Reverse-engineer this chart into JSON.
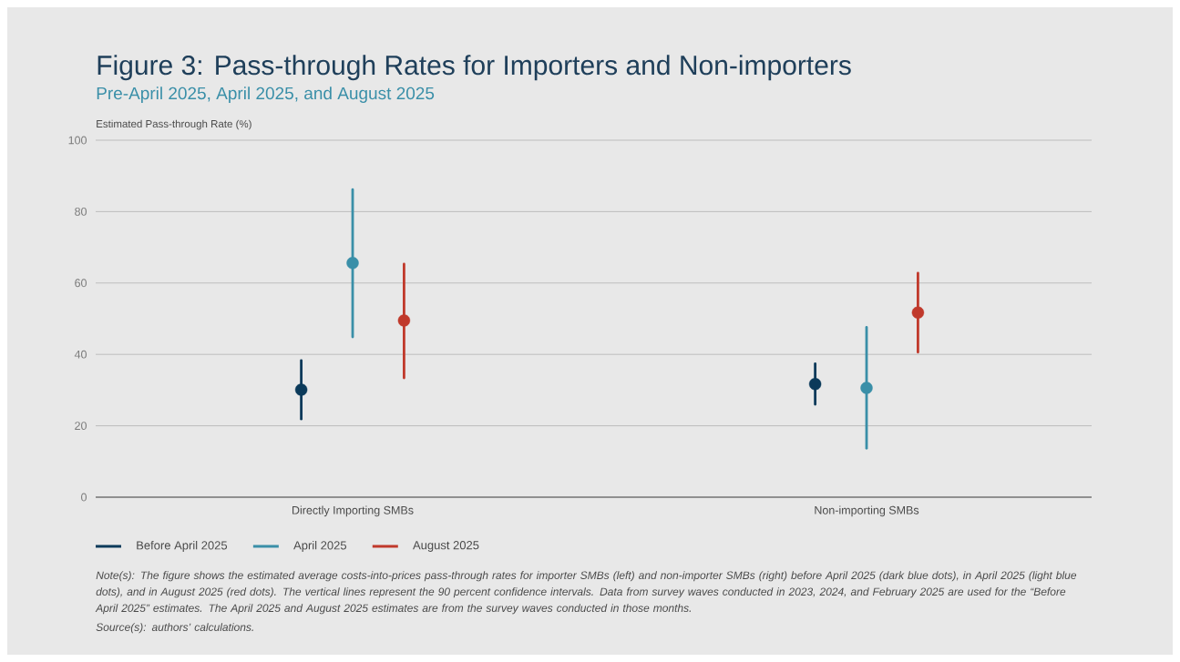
{
  "chart_data": {
    "type": "scatter",
    "title": "Figure 3: Pass-through Rates for Importers and Non-importers",
    "subtitle": "Pre-April 2025, April 2025, and August 2025",
    "ylabel": "Estimated Pass-through Rate (%)",
    "categories": [
      "Directly Importing SMBs",
      "Non-importing SMBs"
    ],
    "series": [
      {
        "name": "Before April 2025",
        "color": "#0b3a5a",
        "values": [
          30.1,
          31.7
        ],
        "errors": [
          [
            21.9,
            38.3
          ],
          [
            26.0,
            37.4
          ]
        ]
      },
      {
        "name": "April 2025",
        "color": "#3a8fa8",
        "values": [
          65.6,
          30.6
        ],
        "errors": [
          [
            44.9,
            86.2
          ],
          [
            13.7,
            47.6
          ]
        ]
      },
      {
        "name": "August 2025",
        "color": "#c0392b",
        "values": [
          49.5,
          51.7
        ],
        "errors": [
          [
            33.4,
            65.3
          ],
          [
            40.6,
            62.8
          ]
        ]
      }
    ],
    "ylim": [
      0,
      100
    ],
    "yticks": [
      0,
      20,
      40,
      60,
      80,
      100
    ],
    "grid": "y",
    "legend": "bottom",
    "marker": "circle",
    "annotations": [
      "Note(s): The figure shows the estimated average costs-into-prices pass-through rates for importer SMBs (left) and non-importer SMBs (right) before April 2025 (dark blue dots), in April 2025 (light blue dots), and in August 2025 (red dots). The vertical lines represent the 90 percent confidence intervals. Data from survey waves conducted in 2023, 2024, and February 2025 are used for the “Before April 2025” estimates. The April 2025 and August 2025 estimates are from the survey waves conducted in those months.",
      "Source(s): authors’ calculations."
    ]
  }
}
